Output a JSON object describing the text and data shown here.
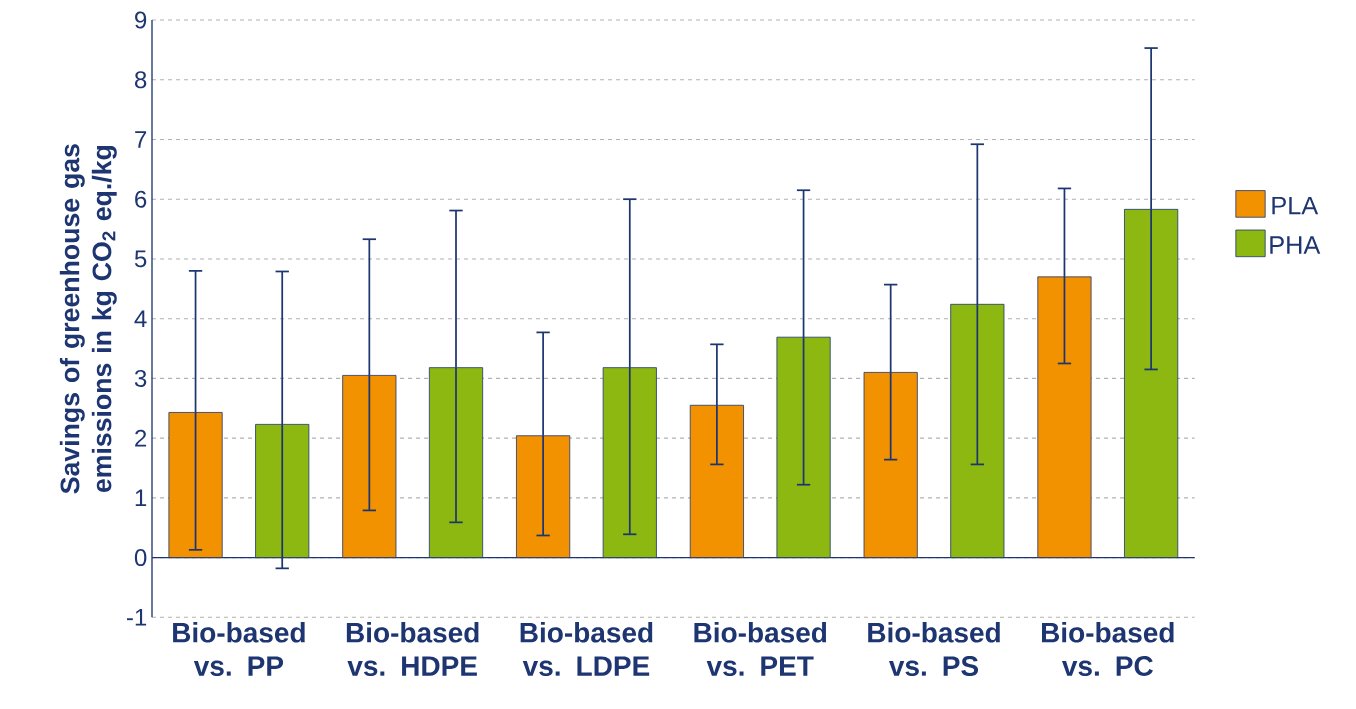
{
  "chart_data": {
    "type": "bar",
    "ylabel": "Savings of greenhouse gas emissions in kg CO$_{2}$ eq./kg",
    "categories": [
      "Bio-based vs. PP",
      "Bio-based vs. HDPE",
      "Bio-based vs. LDPE",
      "Bio-based vs. PET",
      "Bio-based vs. PS",
      "Bio-based vs. PC"
    ],
    "series": [
      {
        "name": "PLA",
        "color": "#f39200",
        "values": [
          2.43,
          3.05,
          2.04,
          2.55,
          3.1,
          4.7
        ],
        "errors": [
          [
            0.13,
            4.8
          ],
          [
            0.79,
            5.33
          ],
          [
            0.37,
            3.77
          ],
          [
            1.56,
            3.57
          ],
          [
            1.64,
            4.57
          ],
          [
            3.25,
            6.18
          ]
        ]
      },
      {
        "name": "PHA",
        "color": "#8cb811",
        "values": [
          2.23,
          3.18,
          3.18,
          3.69,
          4.24,
          5.83
        ],
        "errors": [
          [
            -0.18,
            4.79
          ],
          [
            0.59,
            5.81
          ],
          [
            0.39,
            6.0
          ],
          [
            1.22,
            6.15
          ],
          [
            1.56,
            6.92
          ],
          [
            3.15,
            8.53
          ]
        ]
      }
    ],
    "ylim": [
      -1,
      9
    ],
    "yticks": [
      -1,
      0,
      1,
      2,
      3,
      4,
      5,
      6,
      7,
      8,
      9
    ],
    "ref_lines": [
      {
        "axis": "y",
        "value": 0,
        "color": "#1d3570"
      }
    ],
    "grid": "y",
    "legend": "right"
  }
}
